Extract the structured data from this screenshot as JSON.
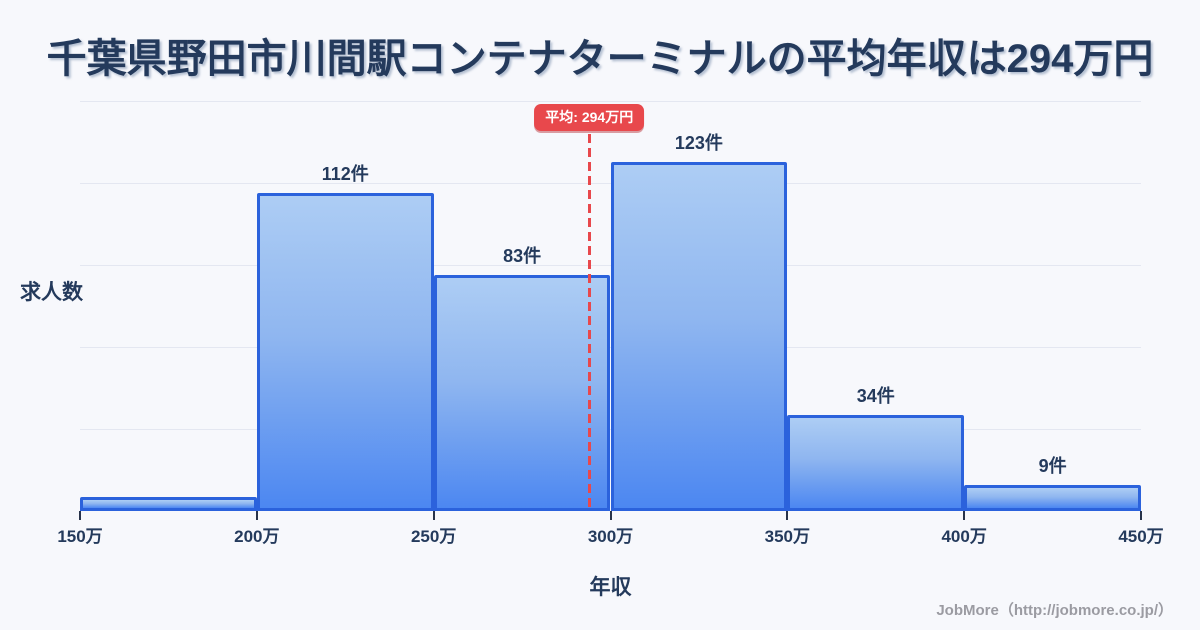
{
  "title": "千葉県野田市川間駅コンテナターミナルの平均年収は294万円",
  "axes": {
    "y_label": "求人数",
    "x_label": "年収"
  },
  "average": {
    "badge_label": "平均: 294万円",
    "value": 294
  },
  "footer": {
    "credit": "JobMore（http://jobmore.co.jp/）"
  },
  "colors": {
    "background": "#F7F8FC",
    "title_navy": "#243A5C",
    "bar_border": "#2B62DC",
    "bar_fill_top": "#ADCDF4",
    "bar_fill_bottom": "#4C87F1",
    "accent_red": "#E8484C",
    "gridline": "#E4E7F1",
    "footer_gray": "#9B9BA2"
  },
  "chart_data": {
    "type": "bar",
    "title": "千葉県野田市川間駅コンテナターミナルの平均年収は294万円",
    "xlabel": "年収",
    "ylabel": "求人数",
    "x_axis_tick_labels": [
      "150万",
      "200万",
      "250万",
      "300万",
      "350万",
      "400万",
      "450万"
    ],
    "x_range_man_yen": [
      150,
      450
    ],
    "grid": true,
    "legend": false,
    "bins": [
      {
        "range": "150万-200万",
        "value": 5,
        "label": "",
        "label_visible": false
      },
      {
        "range": "200万-250万",
        "value": 112,
        "label": "112件",
        "label_visible": true
      },
      {
        "range": "250万-300万",
        "value": 83,
        "label": "83件",
        "label_visible": true
      },
      {
        "range": "300万-350万",
        "value": 123,
        "label": "123件",
        "label_visible": true
      },
      {
        "range": "350万-400万",
        "value": 34,
        "label": "34件",
        "label_visible": true
      },
      {
        "range": "400万-450万",
        "value": 9,
        "label": "9件",
        "label_visible": true
      }
    ],
    "average_line": {
      "value": 294,
      "label": "平均: 294万円",
      "style": "red-dashed-vertical"
    }
  }
}
